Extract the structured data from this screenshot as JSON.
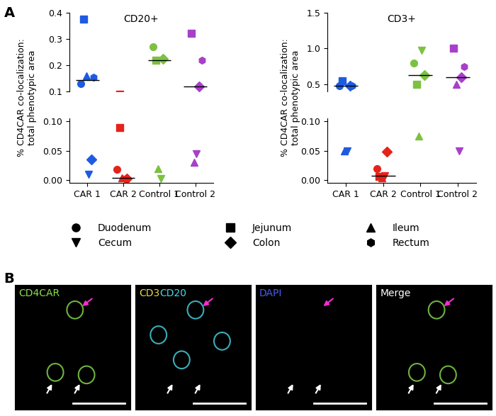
{
  "chart_data": [
    {
      "type": "scatter",
      "title": "CD20+",
      "categories": [
        "CAR 1",
        "CAR 2",
        "Control 1",
        "Control 2"
      ],
      "colors": [
        "#1f5be0",
        "#e5231b",
        "#7dc142",
        "#a93fc9"
      ],
      "y_axes": [
        {
          "ylim": [
            -0.005,
            0.105
          ],
          "yticks": [
            {
              "value": 0,
              "label": "0.00"
            },
            {
              "value": 0.05,
              "label": "0.05"
            },
            {
              "value": 0.1,
              "label": "0.10"
            }
          ]
        },
        {
          "ylim": [
            0.1,
            0.4
          ],
          "yticks": [
            0.1,
            0.2,
            0.3,
            0.4
          ]
        }
      ],
      "series": [
        {
          "name": "Duodenum",
          "marker": "circle",
          "values": [
            0.13,
            0.018,
            0.27,
            null
          ]
        },
        {
          "name": "Jejunum",
          "marker": "square",
          "values": [
            0.375,
            0.09,
            0.22,
            0.32
          ]
        },
        {
          "name": "Ileum",
          "marker": "triangle",
          "values": [
            0.16,
            0.004,
            0.02,
            0.03
          ]
        },
        {
          "name": "Cecum",
          "marker": "triangle_down",
          "values": [
            0.01,
            0.001,
            0.002,
            0.045
          ]
        },
        {
          "name": "Colon",
          "marker": "diamond",
          "values": [
            0.035,
            0.002,
            0.225,
            0.12
          ]
        },
        {
          "name": "Rectum",
          "marker": "hexagon",
          "values": [
            0.155,
            null,
            null,
            0.22
          ]
        }
      ],
      "medians": [
        0.1425,
        0.004,
        0.22,
        0.12
      ]
    },
    {
      "type": "scatter",
      "title": "CD3+",
      "categories": [
        "CAR 1",
        "CAR 2",
        "Control 1",
        "Control 2"
      ],
      "colors": [
        "#1f5be0",
        "#e5231b",
        "#7dc142",
        "#a93fc9"
      ],
      "y_axes": [
        {
          "ylim": [
            -0.005,
            0.105
          ],
          "yticks": [
            {
              "value": 0,
              "label": "0.00"
            },
            {
              "value": 0.05,
              "label": "0.05"
            },
            {
              "value": 0.1,
              "label": "0.10"
            }
          ]
        },
        {
          "ylim": [
            0.4,
            1.5
          ],
          "yticks": [
            0.5,
            {
              "value": 1.0,
              "label": "1.0"
            },
            1.5
          ]
        }
      ],
      "series": [
        {
          "name": "Duodenum",
          "marker": "circle",
          "values": [
            0.48,
            0.02,
            0.8,
            null
          ]
        },
        {
          "name": "Jejunum",
          "marker": "square",
          "values": [
            0.55,
            0.006,
            0.5,
            1.0
          ]
        },
        {
          "name": "Ileum",
          "marker": "triangle",
          "values": [
            0.05,
            0.004,
            0.075,
            0.5
          ]
        },
        {
          "name": "Cecum",
          "marker": "triangle_down",
          "values": [
            0.05,
            0.008,
            0.97,
            0.05
          ]
        },
        {
          "name": "Colon",
          "marker": "diamond",
          "values": [
            0.48,
            0.048,
            0.63,
            0.6
          ]
        },
        {
          "name": "Rectum",
          "marker": "hexagon",
          "values": [
            0.48,
            null,
            null,
            0.75
          ]
        }
      ],
      "medians": [
        0.48,
        0.008,
        0.63,
        0.6
      ]
    }
  ],
  "y_label": "% CD4CAR co-localization:\ntotal phenotypic area",
  "legend": "upper center",
  "panel_labels": [
    "A",
    "B"
  ],
  "images": [
    {
      "labels": [
        {
          "text": "CD4CAR",
          "color": "#8be04e"
        }
      ]
    },
    {
      "labels": [
        {
          "text": "CD3",
          "color": "#e8d84a"
        },
        {
          "text": "CD20",
          "color": "#4ad8e8"
        }
      ]
    },
    {
      "labels": [
        {
          "text": "DAPI",
          "color": "#4a5cf0"
        }
      ]
    },
    {
      "labels": [
        {
          "text": "Merge",
          "color": "#ffffff"
        }
      ]
    }
  ]
}
